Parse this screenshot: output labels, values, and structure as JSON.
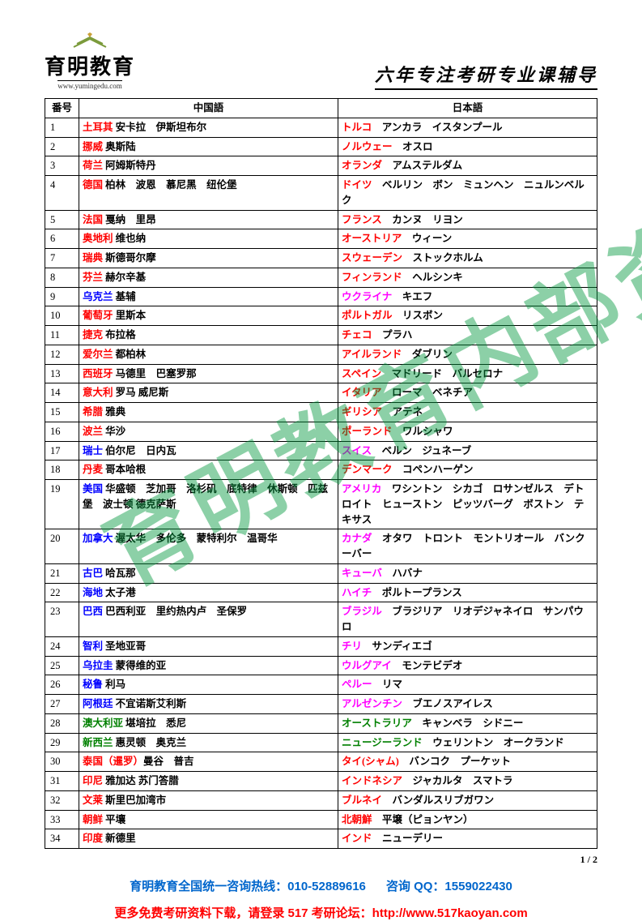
{
  "logo": {
    "brand": "育明教育",
    "url": "www.yumingedu.com"
  },
  "header_title": "六年专注考研专业课辅导",
  "watermark": "育明教育内部资料",
  "page_num": "1 / 2",
  "footer": {
    "line1a": "育明教育全国统一咨询热线：010-52889616",
    "line1b": "咨询 QQ：1559022430",
    "line2": "更多免费考研资料下载，请登录 517 考研论坛：http://www.517kaoyan.com"
  },
  "columns": {
    "num": "番号",
    "cn": "中国語",
    "jp": "日本語"
  },
  "color_map": {
    "red": "#ff0000",
    "blue": "#0000ff",
    "magenta": "#ff00ff",
    "green": "#008000",
    "black": "#000000"
  },
  "rows": [
    {
      "n": "1",
      "cn_c": "土耳其",
      "cn_t": " 安卡拉　伊斯坦布尔",
      "cc": "red",
      "jp_c": "トルコ",
      "jp_t": "　アンカラ　イスタンプール",
      "jc": "red"
    },
    {
      "n": "2",
      "cn_c": "挪威",
      "cn_t": " 奥斯陆",
      "cc": "red",
      "jp_c": "ノルウェー",
      "jp_t": "　オスロ",
      "jc": "red"
    },
    {
      "n": "3",
      "cn_c": "荷兰",
      "cn_t": " 阿姆斯特丹",
      "cc": "red",
      "jp_c": "オランダ",
      "jp_t": "　アムステルダム",
      "jc": "red"
    },
    {
      "n": "4",
      "cn_c": "德国",
      "cn_t": " 柏林　波恩　慕尼黑　纽伦堡",
      "cc": "red",
      "jp_c": "ドイツ",
      "jp_t": "　ベルリン　ボン　ミュンヘン　ニュルンベルク",
      "jc": "red"
    },
    {
      "n": "5",
      "cn_c": "法国",
      "cn_t": " 戛纳　里昂",
      "cc": "red",
      "jp_c": "フランス",
      "jp_t": "　カンヌ　リヨン",
      "jc": "red"
    },
    {
      "n": "6",
      "cn_c": "奥地利",
      "cn_t": " 维也纳",
      "cc": "red",
      "jp_c": "オーストリア",
      "jp_t": "　ウィーン",
      "jc": "red"
    },
    {
      "n": "7",
      "cn_c": "瑞典",
      "cn_t": " 斯德哥尔摩",
      "cc": "red",
      "jp_c": "スウェーデン",
      "jp_t": "　ストックホルム",
      "jc": "red"
    },
    {
      "n": "8",
      "cn_c": "芬兰",
      "cn_t": " 赫尔辛基",
      "cc": "red",
      "jp_c": "フィンランド",
      "jp_t": "　ヘルシンキ",
      "jc": "red"
    },
    {
      "n": "9",
      "cn_c": "乌克兰",
      "cn_t": " 基辅",
      "cc": "blue",
      "jp_c": "ウクライナ",
      "jp_t": "　キエフ",
      "jc": "magenta"
    },
    {
      "n": "10",
      "cn_c": "葡萄牙",
      "cn_t": " 里斯本",
      "cc": "red",
      "jp_c": "ポルトガル",
      "jp_t": "　リスボン",
      "jc": "red"
    },
    {
      "n": "11",
      "cn_c": "捷克",
      "cn_t": " 布拉格",
      "cc": "red",
      "jp_c": "チェコ",
      "jp_t": "　プラハ",
      "jc": "red"
    },
    {
      "n": "12",
      "cn_c": "爱尔兰",
      "cn_t": " 都柏林",
      "cc": "red",
      "jp_c": "アイルランド",
      "jp_t": "　ダブリン",
      "jc": "red"
    },
    {
      "n": "13",
      "cn_c": "西班牙",
      "cn_t": " 马德里　巴塞罗那",
      "cc": "red",
      "jp_c": "スペイン",
      "jp_t": "　マドリード　バルセロナ",
      "jc": "red"
    },
    {
      "n": "14",
      "cn_c": "意大利",
      "cn_t": " 罗马 威尼斯",
      "cc": "red",
      "jp_c": "イタリア",
      "jp_t": "　ローマ　ベネチア",
      "jc": "red"
    },
    {
      "n": "15",
      "cn_c": "希腊",
      "cn_t": " 雅典",
      "cc": "red",
      "jp_c": "ギリシア",
      "jp_t": "　アテネ",
      "jc": "red"
    },
    {
      "n": "16",
      "cn_c": "波兰",
      "cn_t": " 华沙",
      "cc": "red",
      "jp_c": "ポーランド",
      "jp_t": "　ワルシャワ",
      "jc": "red"
    },
    {
      "n": "17",
      "cn_c": "瑞士",
      "cn_t": " 伯尔尼　日内瓦",
      "cc": "blue",
      "jp_c": "スイス",
      "jp_t": "　ベルン　ジュネーブ",
      "jc": "magenta"
    },
    {
      "n": "18",
      "cn_c": "丹麦",
      "cn_t": " 哥本哈根",
      "cc": "red",
      "jp_c": "デンマーク",
      "jp_t": "　コペンハーゲン",
      "jc": "red"
    },
    {
      "n": "19",
      "cn_c": "美国",
      "cn_t": " 华盛顿　芝加哥　洛杉矶　底特律　休斯顿　匹兹堡　波士顿 德克萨斯",
      "cc": "blue",
      "jp_c": "アメリカ",
      "jp_t": "　ワシントン　シカゴ　ロサンゼルス　デトロイト　ヒューストン　ピッツバーグ　ボストン　テキサス",
      "jc": "magenta"
    },
    {
      "n": "20",
      "cn_c": "加拿大",
      "cn_t": " 渥太华　多伦多　蒙特利尔　温哥华",
      "cc": "blue",
      "jp_c": "カナダ",
      "jp_t": "　オタワ　トロント　モントリオール　バンクーバー",
      "jc": "magenta"
    },
    {
      "n": "21",
      "cn_c": "古巴",
      "cn_t": " 哈瓦那",
      "cc": "blue",
      "jp_c": "キューバ",
      "jp_t": "　ハバナ",
      "jc": "magenta"
    },
    {
      "n": "22",
      "cn_c": "海地",
      "cn_t": " 太子港",
      "cc": "blue",
      "jp_c": "ハイチ",
      "jp_t": "　ポルトープランス",
      "jc": "magenta"
    },
    {
      "n": "23",
      "cn_c": "巴西",
      "cn_t": " 巴西利亚　里约热内卢　圣保罗",
      "cc": "blue",
      "jp_c": "ブラジル",
      "jp_t": "　ブラジリア　リオデジャネイロ　サンパウロ",
      "jc": "magenta"
    },
    {
      "n": "24",
      "cn_c": "智利",
      "cn_t": " 圣地亚哥",
      "cc": "blue",
      "jp_c": "チリ",
      "jp_t": "　サンディエゴ",
      "jc": "magenta"
    },
    {
      "n": "25",
      "cn_c": "乌拉圭",
      "cn_t": " 蒙得维的亚",
      "cc": "blue",
      "jp_c": "ウルグアイ",
      "jp_t": "　モンテビデオ",
      "jc": "magenta"
    },
    {
      "n": "26",
      "cn_c": "秘鲁",
      "cn_t": " 利马",
      "cc": "blue",
      "jp_c": "ペルー",
      "jp_t": "　リマ",
      "jc": "magenta"
    },
    {
      "n": "27",
      "cn_c": "阿根廷",
      "cn_t": " 不宜诺斯艾利斯",
      "cc": "blue",
      "jp_c": "アルゼンチン",
      "jp_t": "　ブエノスアイレス",
      "jc": "magenta"
    },
    {
      "n": "28",
      "cn_c": "澳大利亚",
      "cn_t": " 堪培拉　悉尼",
      "cc": "green",
      "jp_c": "オーストラリア",
      "jp_t": "　キャンベラ　シドニー",
      "jc": "green"
    },
    {
      "n": "29",
      "cn_c": "新西兰",
      "cn_t": " 惠灵顿　奥克兰",
      "cc": "green",
      "jp_c": "ニュージーランド",
      "jp_t": "　ウェリントン　オークランド",
      "jc": "green"
    },
    {
      "n": "30",
      "cn_c": "泰国（暹罗）",
      "cn_t": "曼谷　普吉",
      "cc": "red",
      "jp_c": "タイ(シャム)",
      "jp_t": "　バンコク　プーケット",
      "jc": "red"
    },
    {
      "n": "31",
      "cn_c": "印尼",
      "cn_t": " 雅加达 苏门答腊",
      "cc": "red",
      "jp_c": "インドネシア",
      "jp_t": "　ジャカルタ　スマトラ",
      "jc": "red"
    },
    {
      "n": "32",
      "cn_c": "文莱",
      "cn_t": " 斯里巴加湾市",
      "cc": "red",
      "jp_c": "ブルネイ",
      "jp_t": "　バンダルスリブガワン",
      "jc": "red"
    },
    {
      "n": "33",
      "cn_c": "朝鲜",
      "cn_t": " 平壤",
      "cc": "red",
      "jp_c": "北朝鮮",
      "jp_t": "　平壌（ピョンヤン）",
      "jc": "red"
    },
    {
      "n": "34",
      "cn_c": "印度",
      "cn_t": " 新德里",
      "cc": "red",
      "jp_c": "インド",
      "jp_t": "　ニューデリー",
      "jc": "red"
    }
  ]
}
